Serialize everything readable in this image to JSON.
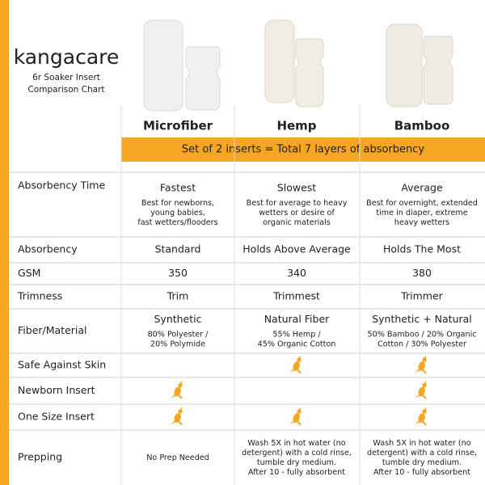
{
  "header": {
    "logo": "kangacare",
    "subtitle": [
      "6r Soaker Insert",
      "Comparison Chart"
    ]
  },
  "columns": [
    "Microfiber",
    "Hemp",
    "Bamboo"
  ],
  "banner": "Set of 2 inserts = Total 7 layers of absorbency",
  "rows": [
    {
      "label": "Absorbency Time",
      "cells": [
        {
          "title": "Fastest",
          "lines": [
            "Best for newborns,",
            "young babies,",
            "fast wetters/flooders"
          ]
        },
        {
          "title": "Slowest",
          "lines": [
            "Best for average to heavy",
            "wetters or desire of",
            "organic materials"
          ]
        },
        {
          "title": "Average",
          "lines": [
            "Best for overnight, extended",
            "time in diaper, extreme",
            "heavy wetters"
          ]
        }
      ]
    },
    {
      "label": "Absorbency",
      "cells": [
        {
          "title": "Standard"
        },
        {
          "title": "Holds Above Average"
        },
        {
          "title": "Holds The Most"
        }
      ]
    },
    {
      "label": "GSM",
      "cells": [
        {
          "title": "350"
        },
        {
          "title": "340"
        },
        {
          "title": "380"
        }
      ]
    },
    {
      "label": "Trimness",
      "cells": [
        {
          "title": "Trim"
        },
        {
          "title": "Trimmest"
        },
        {
          "title": "Trimmer"
        }
      ]
    },
    {
      "label": "Fiber/Material",
      "cells": [
        {
          "title": "Synthetic",
          "lines": [
            "80% Polyester /",
            "20% Polymide"
          ]
        },
        {
          "title": "Natural Fiber",
          "lines": [
            "55% Hemp /",
            "45% Organic Cotton"
          ]
        },
        {
          "title": "Synthetic + Natural",
          "lines": [
            "50% Bamboo / 20% Organic",
            "Cotton / 30% Polyester"
          ]
        }
      ]
    },
    {
      "label": "Safe Against Skin",
      "icons": [
        false,
        true,
        true
      ]
    },
    {
      "label": "Newborn Insert",
      "icons": [
        true,
        false,
        true
      ]
    },
    {
      "label": "One Size Insert",
      "icons": [
        true,
        true,
        true
      ]
    },
    {
      "label": "Prepping",
      "cells": [
        {
          "lines": [
            "No Prep Needed"
          ]
        },
        {
          "lines": [
            "Wash 5X in hot water (no",
            "detergent) with a cold rinse,",
            "tumble dry medium.",
            "After 10 - fully absorbent"
          ]
        },
        {
          "lines": [
            "Wash 5X in hot water (no",
            "detergent) with a cold rinse,",
            "tumble dry medium.",
            "After 10 - fully absorbent"
          ]
        }
      ]
    }
  ]
}
